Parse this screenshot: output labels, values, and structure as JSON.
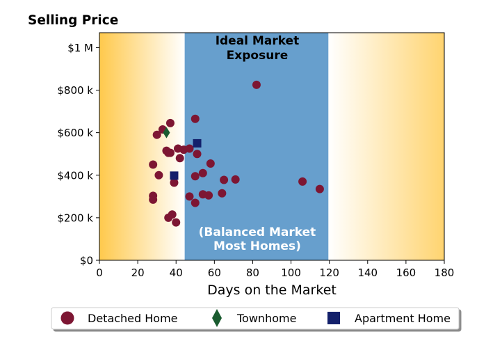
{
  "chart_data": {
    "type": "scatter",
    "title": "Selling Price",
    "xlabel": "Days on the Market",
    "ylabel": "",
    "xlim": [
      0,
      180
    ],
    "ylim": [
      0,
      1070000
    ],
    "xticks": [
      0,
      20,
      40,
      60,
      80,
      100,
      120,
      140,
      160,
      180
    ],
    "yticks": [
      {
        "value": 0,
        "label": "$0"
      },
      {
        "value": 200000,
        "label": "$200 k"
      },
      {
        "value": 400000,
        "label": "$400 k"
      },
      {
        "value": 600000,
        "label": "$600 k"
      },
      {
        "value": 800000,
        "label": "$800 k"
      },
      {
        "value": 1000000,
        "label": "$1 M"
      }
    ],
    "band": {
      "x_range": [
        44.5,
        119.5
      ],
      "color": "#679fcd",
      "top_label_line1": "Ideal Market",
      "top_label_line2": "Exposure",
      "bottom_label_line1": "(Balanced Market",
      "bottom_label_line2": "Most Homes)"
    },
    "gradient_color": "#ffc94c",
    "grid": false,
    "legend_position": "bottom",
    "series": [
      {
        "name": "Detached Home",
        "marker": "circle",
        "color": "#7d1633",
        "points": [
          [
            82,
            825000
          ],
          [
            50,
            665000
          ],
          [
            37,
            645000
          ],
          [
            33,
            615000
          ],
          [
            30,
            590000
          ],
          [
            41,
            525000
          ],
          [
            44,
            520000
          ],
          [
            47,
            525000
          ],
          [
            35,
            515000
          ],
          [
            36,
            505000
          ],
          [
            37,
            505000
          ],
          [
            51,
            500000
          ],
          [
            42,
            480000
          ],
          [
            58,
            455000
          ],
          [
            28,
            450000
          ],
          [
            54,
            410000
          ],
          [
            31,
            400000
          ],
          [
            50,
            395000
          ],
          [
            65,
            378000
          ],
          [
            71,
            380000
          ],
          [
            106,
            370000
          ],
          [
            39,
            365000
          ],
          [
            115,
            335000
          ],
          [
            64,
            315000
          ],
          [
            54,
            310000
          ],
          [
            57,
            305000
          ],
          [
            28,
            303000
          ],
          [
            47,
            300000
          ],
          [
            28,
            285000
          ],
          [
            50,
            270000
          ],
          [
            38,
            215000
          ],
          [
            36,
            200000
          ],
          [
            40,
            178000
          ]
        ]
      },
      {
        "name": "Townhome",
        "marker": "diamond",
        "color": "#1a5c30",
        "points": [
          [
            35,
            600000
          ]
        ]
      },
      {
        "name": "Apartment Home",
        "marker": "square",
        "color": "#13206b",
        "points": [
          [
            51,
            550000
          ],
          [
            39,
            398000
          ]
        ]
      }
    ]
  }
}
